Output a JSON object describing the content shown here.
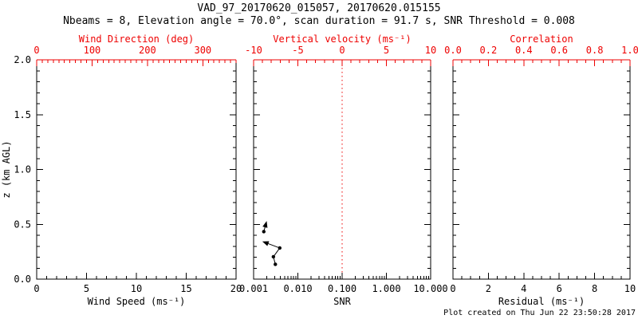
{
  "title": "VAD_97_20170620_015057, 20170620.015155",
  "subtitle": "Nbeams = 8, Elevation angle = 70.0°, scan duration = 91.7 s, SNR Threshold = 0.008",
  "footer": "Plot created on Thu Jun 22 23:50:28 2017",
  "colors": {
    "foreground": "#000000",
    "secondary_axis": "#ee0000",
    "background": "#ffffff"
  },
  "chart_data": {
    "type": "scatter",
    "title": "VAD_97_20170620_015057, 20170620.015155",
    "subtitle": "Nbeams = 8, Elevation angle = 70.0°, scan duration = 91.7 s, SNR Threshold = 0.008",
    "y_axis": {
      "label": "z (km AGL)",
      "min": 0,
      "max": 2,
      "minor_step": 0.1,
      "major": [
        {
          "v": 0,
          "label": "0.0"
        },
        {
          "v": 0.5,
          "label": "0.5"
        },
        {
          "v": 1,
          "label": "1.0"
        },
        {
          "v": 1.5,
          "label": "1.5"
        },
        {
          "v": 2,
          "label": "2.0"
        }
      ]
    },
    "panels": [
      {
        "name": "wind-speed",
        "y_tick_labels": true,
        "bottom_axis": {
          "title": "Wind Speed (ms⁻¹)",
          "min": 0,
          "max": 20,
          "log": false,
          "minor_step": 1,
          "major": [
            {
              "v": 0,
              "label": "0"
            },
            {
              "v": 5,
              "label": "5"
            },
            {
              "v": 10,
              "label": "10"
            },
            {
              "v": 15,
              "label": "15"
            },
            {
              "v": 20,
              "label": "20"
            }
          ]
        },
        "top_axis": {
          "title": "Wind Direction (deg)",
          "min": 0,
          "max": 360,
          "log": false,
          "minor_step": 10,
          "major": [
            {
              "v": 0,
              "label": "0"
            },
            {
              "v": 100,
              "label": "100"
            },
            {
              "v": 200,
              "label": "200"
            },
            {
              "v": 300,
              "label": "300"
            }
          ]
        },
        "series": []
      },
      {
        "name": "snr",
        "y_tick_labels": false,
        "bottom_axis": {
          "title": "SNR",
          "min": 0.001,
          "max": 10,
          "log": true,
          "major": [
            {
              "v": 0.001,
              "label": "0.001"
            },
            {
              "v": 0.01,
              "label": "0.010"
            },
            {
              "v": 0.1,
              "label": "0.100"
            },
            {
              "v": 1,
              "label": "1.000"
            },
            {
              "v": 10,
              "label": "10.000"
            }
          ]
        },
        "top_axis": {
          "title": "Vertical velocity (ms⁻¹)",
          "min": -10,
          "max": 10,
          "log": false,
          "minor_step": 1,
          "major": [
            {
              "v": -10,
              "label": "-10"
            },
            {
              "v": -5,
              "label": "-5"
            },
            {
              "v": 0,
              "label": "0"
            },
            {
              "v": 5,
              "label": "5"
            },
            {
              "v": 10,
              "label": "10"
            }
          ]
        },
        "reference_line": {
          "axis": "top",
          "value": 0,
          "style": "dotted"
        },
        "series": [
          {
            "name": "snr-profile-upper",
            "points": [
              {
                "x": 0.0019,
                "z": 0.505,
                "marker": "arrow"
              },
              {
                "x": 0.0017,
                "z": 0.433,
                "marker": "dot"
              }
            ]
          },
          {
            "name": "snr-profile-lower",
            "points": [
              {
                "x": 0.0018,
                "z": 0.335,
                "marker": "arrow"
              },
              {
                "x": 0.0039,
                "z": 0.284,
                "marker": "dot"
              },
              {
                "x": 0.0028,
                "z": 0.204,
                "marker": "dot"
              },
              {
                "x": 0.0031,
                "z": 0.135,
                "marker": "dot"
              }
            ]
          }
        ]
      },
      {
        "name": "residual",
        "y_tick_labels": false,
        "bottom_axis": {
          "title": "Residual (ms⁻¹)",
          "min": 0,
          "max": 10,
          "log": false,
          "minor_step": 0.5,
          "major": [
            {
              "v": 0,
              "label": "0"
            },
            {
              "v": 2,
              "label": "2"
            },
            {
              "v": 4,
              "label": "4"
            },
            {
              "v": 6,
              "label": "6"
            },
            {
              "v": 8,
              "label": "8"
            },
            {
              "v": 10,
              "label": "10"
            }
          ]
        },
        "top_axis": {
          "title": "Correlation",
          "min": 0,
          "max": 1,
          "log": false,
          "minor_step": 0.05,
          "major": [
            {
              "v": 0,
              "label": "0.0"
            },
            {
              "v": 0.2,
              "label": "0.2"
            },
            {
              "v": 0.4,
              "label": "0.4"
            },
            {
              "v": 0.6,
              "label": "0.6"
            },
            {
              "v": 0.8,
              "label": "0.8"
            },
            {
              "v": 1,
              "label": "1.0"
            }
          ]
        },
        "series": []
      }
    ]
  }
}
